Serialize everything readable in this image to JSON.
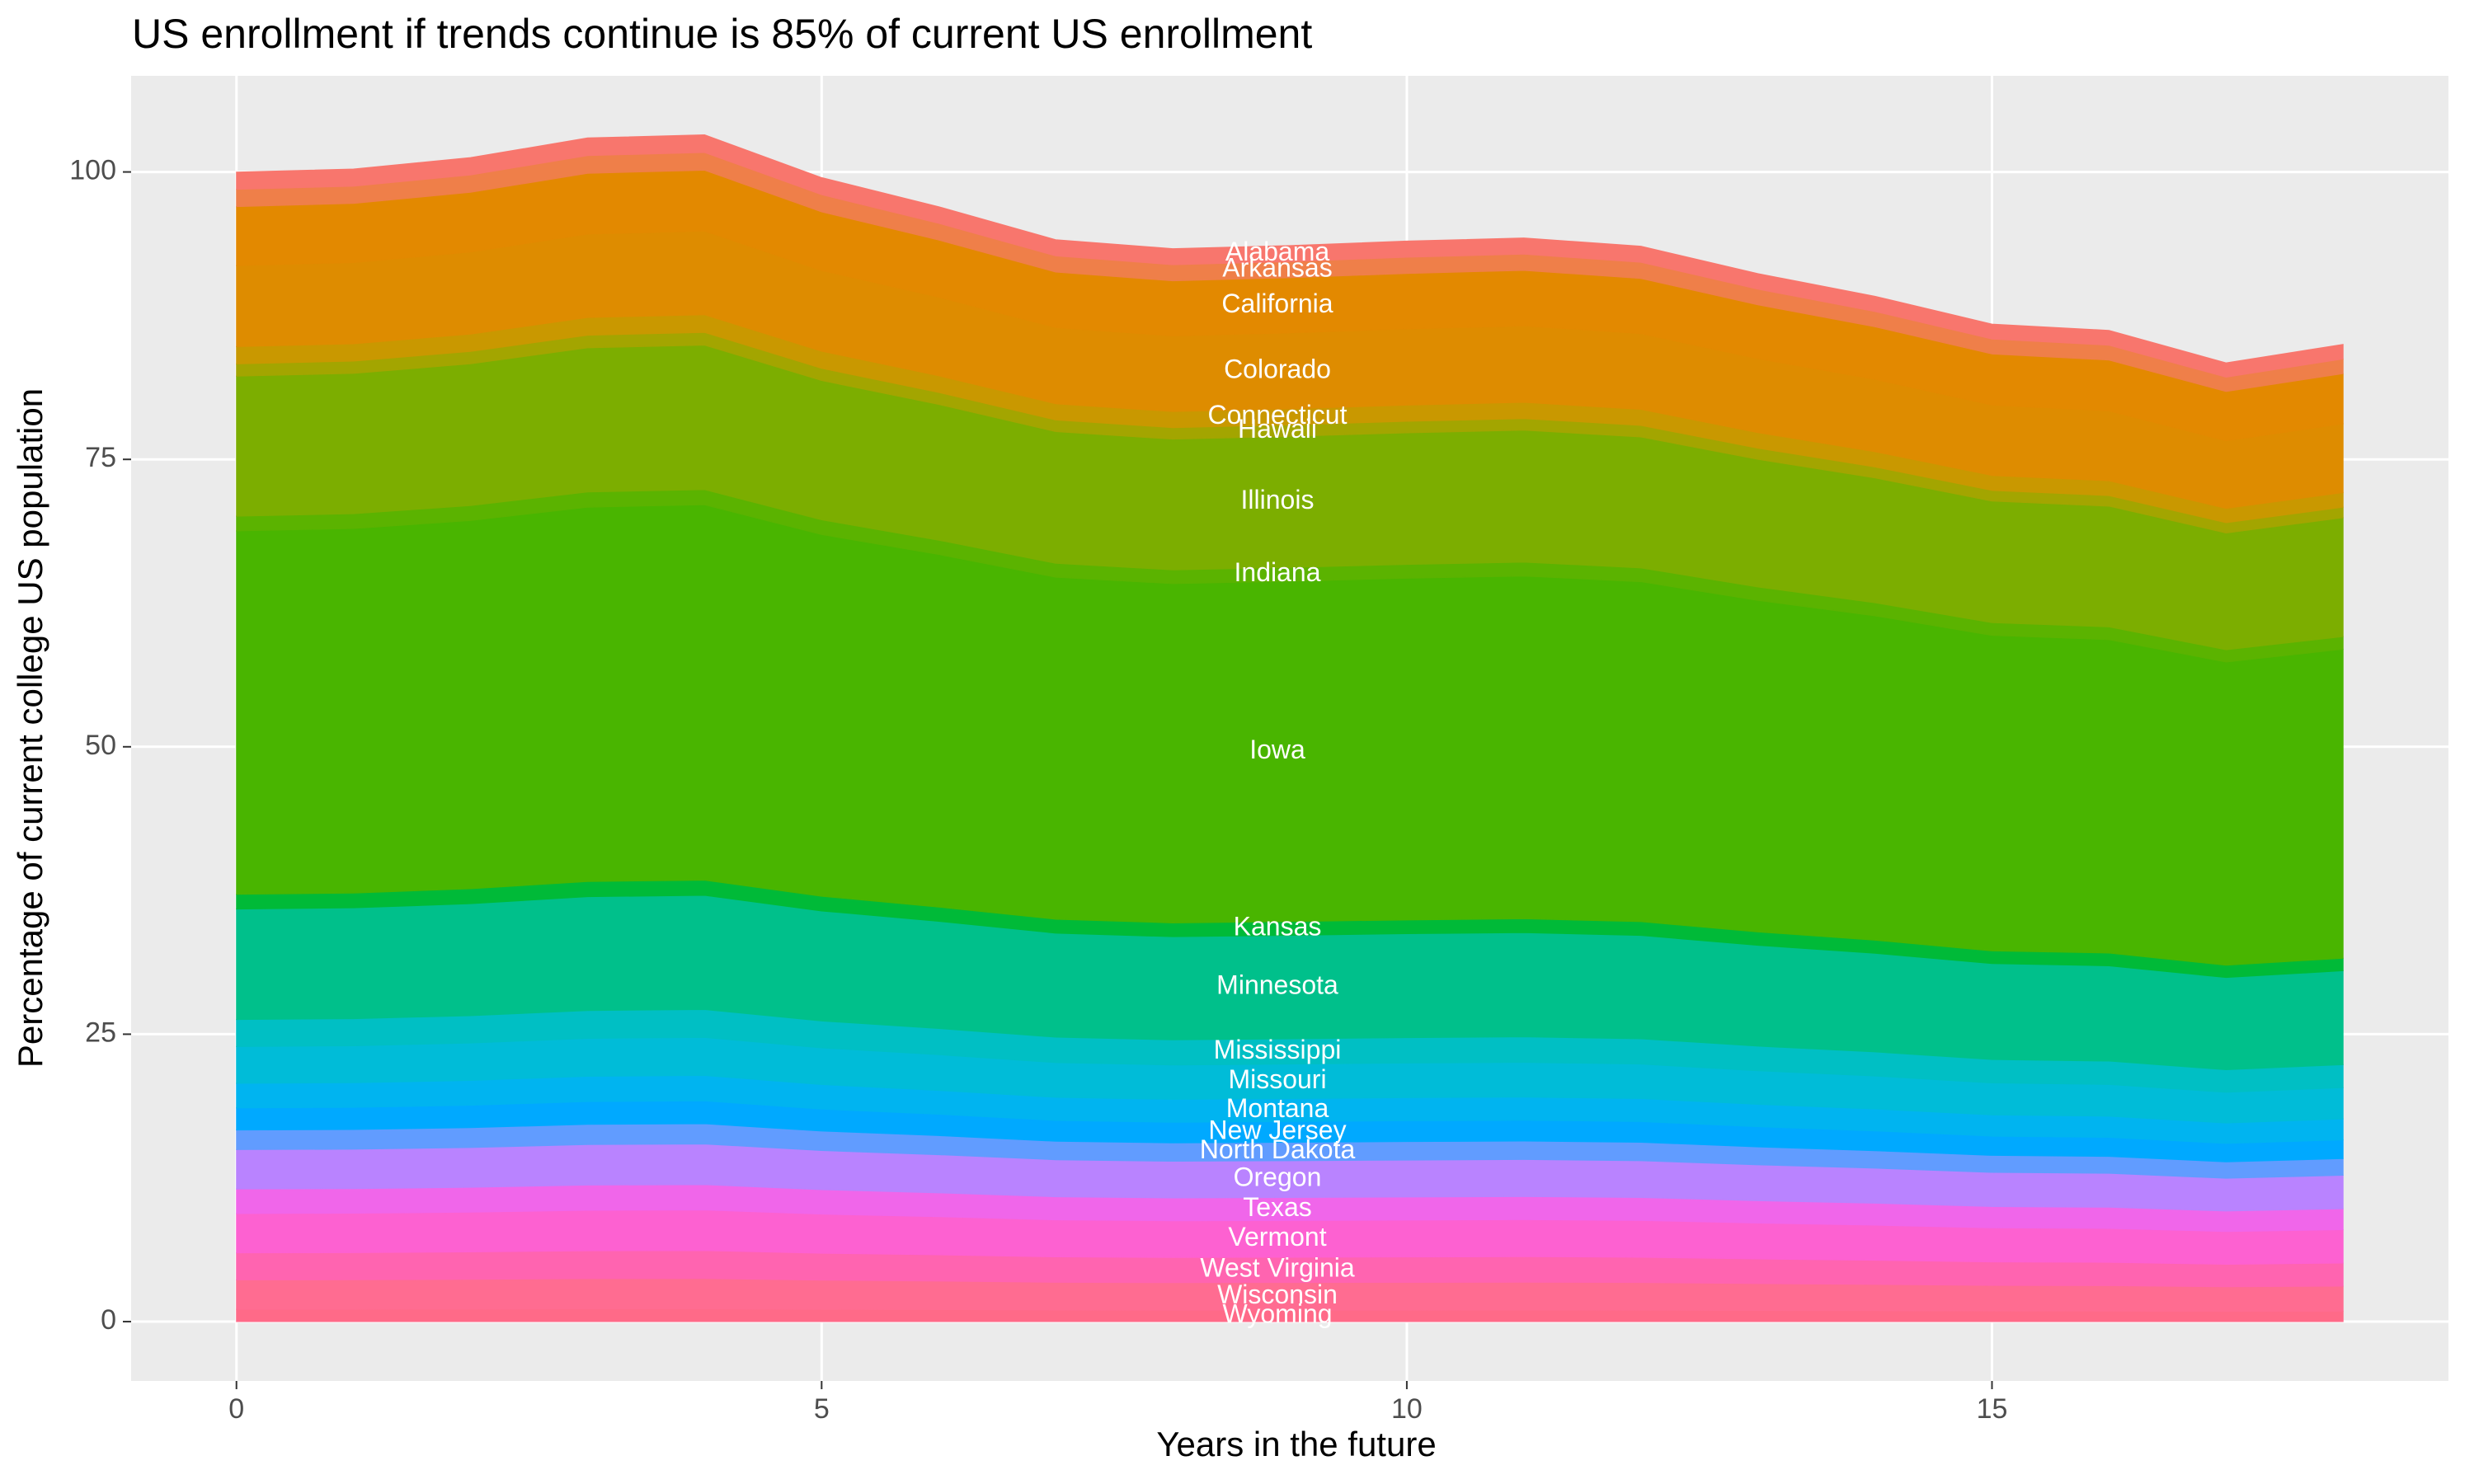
{
  "chart_data": {
    "type": "stacked-area",
    "title": "US enrollment if trends continue is 85% of current US enrollment",
    "x_label": "Years in the future",
    "y_label": "Percentage of current college US population",
    "x": [
      0,
      1,
      2,
      3,
      4,
      5,
      6,
      7,
      8,
      9,
      10,
      11,
      12,
      13,
      14,
      15,
      16,
      17,
      18
    ],
    "xlim": [
      -0.9,
      18.9
    ],
    "xticks": [
      0,
      5,
      10,
      15
    ],
    "ylim": [
      -5.16,
      108.36
    ],
    "yticks": [
      0,
      25,
      50,
      75,
      100
    ],
    "grid": true,
    "panel_color": "#ebebeb",
    "series": [
      {
        "name": "Alabama",
        "color": "#f8766d",
        "values": [
          1.5,
          1.5,
          1.51,
          1.54,
          1.54,
          1.49,
          1.45,
          1.41,
          1.4,
          1.4,
          1.41,
          1.41,
          1.4,
          1.36,
          1.33,
          1.3,
          1.29,
          1.25,
          1.27
        ]
      },
      {
        "name": "Arkansas",
        "color": "#ef7f49",
        "values": [
          1.5,
          1.5,
          1.51,
          1.54,
          1.54,
          1.49,
          1.45,
          1.41,
          1.4,
          1.4,
          1.41,
          1.41,
          1.4,
          1.36,
          1.33,
          1.3,
          1.29,
          1.25,
          1.27
        ]
      },
      {
        "name": "California",
        "color": "#e38900",
        "values": [
          5.13,
          5.14,
          5.19,
          5.28,
          5.29,
          5.1,
          4.97,
          4.82,
          4.79,
          4.8,
          4.82,
          4.83,
          4.8,
          4.68,
          4.57,
          4.45,
          4.42,
          4.28,
          4.36
        ]
      },
      {
        "name": "Colorado",
        "color": "#de8c00",
        "values": [
          7.05,
          7.07,
          7.14,
          7.26,
          7.28,
          7.02,
          6.84,
          6.63,
          6.58,
          6.6,
          6.63,
          6.65,
          6.59,
          6.43,
          6.29,
          6.12,
          6.08,
          5.88,
          5.99
        ]
      },
      {
        "name": "Connecticut",
        "color": "#c99800",
        "values": [
          1.5,
          1.5,
          1.51,
          1.54,
          1.54,
          1.49,
          1.45,
          1.41,
          1.4,
          1.4,
          1.41,
          1.41,
          1.4,
          1.36,
          1.33,
          1.3,
          1.29,
          1.25,
          1.27
        ]
      },
      {
        "name": "Hawaii",
        "color": "#a3a500",
        "values": [
          1.07,
          1.07,
          1.08,
          1.1,
          1.1,
          1.06,
          1.04,
          1.01,
          1,
          1,
          1,
          1.01,
          1,
          0.97,
          0.95,
          0.93,
          0.92,
          0.89,
          0.91
        ]
      },
      {
        "name": "Illinois",
        "color": "#7cae00",
        "values": [
          12.18,
          12.21,
          12.33,
          12.54,
          12.57,
          12.12,
          11.81,
          11.46,
          11.37,
          11.4,
          11.45,
          11.48,
          11.39,
          11.1,
          10.86,
          10.57,
          10.5,
          10.16,
          10.35
        ]
      },
      {
        "name": "Indiana",
        "color": "#5bb300",
        "values": [
          1.28,
          1.29,
          1.3,
          1.32,
          1.32,
          1.28,
          1.24,
          1.21,
          1.2,
          1.2,
          1.2,
          1.21,
          1.2,
          1.17,
          1.14,
          1.11,
          1.11,
          1.07,
          1.09
        ]
      },
      {
        "name": "Iowa",
        "color": "#49b500",
        "values": [
          31.61,
          31.7,
          32.03,
          32.56,
          32.65,
          31.46,
          30.67,
          29.75,
          29.51,
          29.6,
          29.72,
          29.81,
          29.57,
          28.83,
          28.21,
          27.44,
          27.26,
          26.37,
          26.88
        ]
      },
      {
        "name": "Kansas",
        "color": "#00ba38",
        "values": [
          1.28,
          1.29,
          1.3,
          1.32,
          1.32,
          1.28,
          1.24,
          1.21,
          1.2,
          1.2,
          1.2,
          1.21,
          1.2,
          1.17,
          1.14,
          1.11,
          1.11,
          1.07,
          1.09
        ]
      },
      {
        "name": "Minnesota",
        "color": "#00c08b",
        "values": [
          9.61,
          9.64,
          9.74,
          9.9,
          9.93,
          9.57,
          9.32,
          9.05,
          8.97,
          9,
          9.04,
          9.06,
          8.99,
          8.77,
          8.58,
          8.34,
          8.29,
          8.02,
          8.17
        ]
      },
      {
        "name": "Mississippi",
        "color": "#00bfc4",
        "values": [
          2.35,
          2.36,
          2.38,
          2.42,
          2.43,
          2.34,
          2.28,
          2.21,
          2.19,
          2.2,
          2.21,
          2.22,
          2.2,
          2.14,
          2.1,
          2.04,
          2.03,
          1.96,
          2
        ]
      },
      {
        "name": "Missouri",
        "color": "#00bcd8",
        "values": [
          3.2,
          3.21,
          3.25,
          3.3,
          3.31,
          3.19,
          3.11,
          3.02,
          2.99,
          3,
          3.01,
          3.02,
          3,
          2.92,
          2.86,
          2.78,
          2.76,
          2.67,
          2.72
        ]
      },
      {
        "name": "Montana",
        "color": "#00b4f0",
        "values": [
          2.14,
          2.14,
          2.16,
          2.2,
          2.21,
          2.13,
          2.07,
          2.01,
          1.99,
          2,
          2.01,
          2.01,
          2,
          1.95,
          1.91,
          1.85,
          1.84,
          1.78,
          1.82
        ]
      },
      {
        "name": "New Jersey",
        "color": "#00a9ff",
        "values": [
          1.92,
          1.93,
          1.95,
          1.98,
          1.99,
          1.91,
          1.86,
          1.81,
          1.79,
          1.8,
          1.81,
          1.81,
          1.8,
          1.75,
          1.72,
          1.67,
          1.66,
          1.6,
          1.63
        ]
      },
      {
        "name": "North Dakota",
        "color": "#619cff",
        "values": [
          1.71,
          1.71,
          1.73,
          1.76,
          1.76,
          1.7,
          1.66,
          1.61,
          1.6,
          1.6,
          1.61,
          1.61,
          1.6,
          1.56,
          1.52,
          1.48,
          1.47,
          1.43,
          1.45
        ]
      },
      {
        "name": "Oregon",
        "color": "#b983ff",
        "values": [
          3.42,
          3.43,
          3.46,
          3.52,
          3.53,
          3.4,
          3.32,
          3.22,
          3.19,
          3.2,
          3.21,
          3.22,
          3.2,
          3.12,
          3.05,
          2.97,
          2.95,
          2.85,
          2.91
        ]
      },
      {
        "name": "Texas",
        "color": "#f066ea",
        "values": [
          2.14,
          2.14,
          2.16,
          2.2,
          2.21,
          2.13,
          2.07,
          2.01,
          1.99,
          2,
          2.01,
          2.01,
          2,
          1.95,
          1.91,
          1.85,
          1.84,
          1.78,
          1.82
        ]
      },
      {
        "name": "Vermont",
        "color": "#fd61d1",
        "values": [
          3.42,
          3.43,
          3.46,
          3.52,
          3.53,
          3.4,
          3.32,
          3.22,
          3.19,
          3.2,
          3.21,
          3.22,
          3.2,
          3.12,
          3.05,
          2.97,
          2.95,
          2.85,
          2.91
        ]
      },
      {
        "name": "West Virginia",
        "color": "#ff64b0",
        "values": [
          2.35,
          2.36,
          2.38,
          2.42,
          2.43,
          2.34,
          2.28,
          2.21,
          2.19,
          2.2,
          2.21,
          2.22,
          2.2,
          2.14,
          2.1,
          2.04,
          2.03,
          1.96,
          2
        ]
      },
      {
        "name": "Wisconsin",
        "color": "#ff6c91",
        "values": [
          2.56,
          2.57,
          2.6,
          2.64,
          2.65,
          2.55,
          2.49,
          2.41,
          2.39,
          2.4,
          2.41,
          2.42,
          2.4,
          2.34,
          2.29,
          2.22,
          2.21,
          2.14,
          2.18
        ]
      },
      {
        "name": "Wyoming",
        "color": "#ff6a88",
        "values": [
          1.07,
          1.07,
          1.08,
          1.1,
          1.1,
          1.06,
          1.04,
          1.01,
          1,
          1,
          1,
          1.01,
          1,
          0.97,
          0.95,
          0.93,
          0.92,
          0.89,
          0.91
        ]
      }
    ]
  }
}
